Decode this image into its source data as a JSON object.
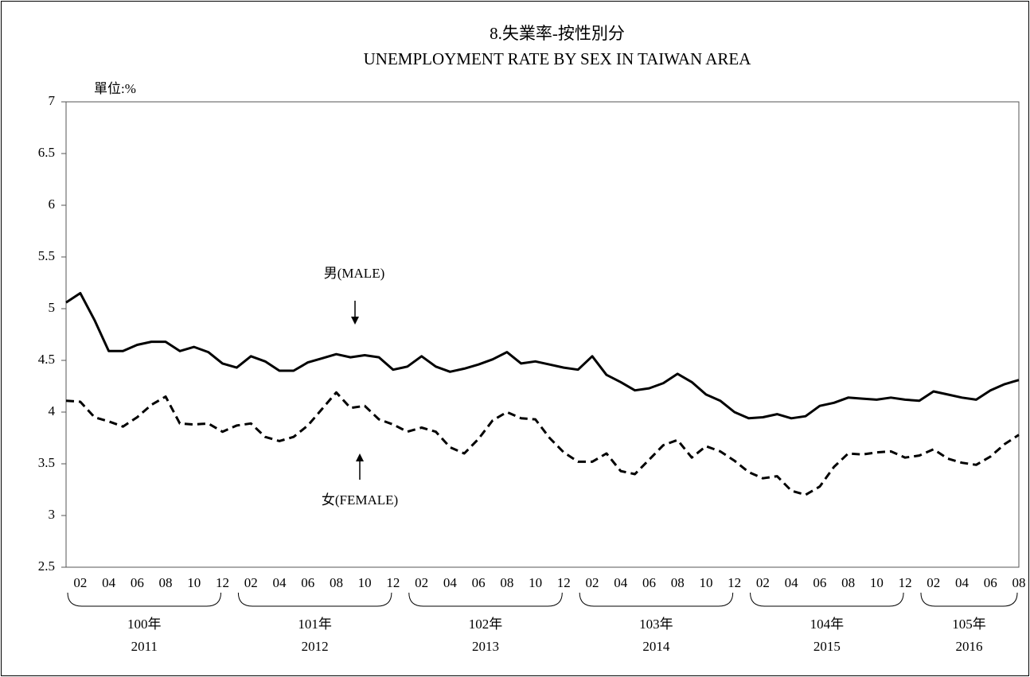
{
  "chart_data": {
    "type": "line",
    "title": "8.失業率-按性別分",
    "subtitle": "UNEMPLOYMENT RATE BY SEX IN TAIWAN AREA",
    "unit_label": "單位:%",
    "categories": [
      null,
      "02",
      null,
      "04",
      null,
      "06",
      null,
      "08",
      null,
      "10",
      null,
      "12",
      null,
      "02",
      null,
      "04",
      null,
      "06",
      null,
      "08",
      null,
      "10",
      null,
      "12",
      null,
      "02",
      null,
      "04",
      null,
      "06",
      null,
      "08",
      null,
      "10",
      null,
      "12",
      null,
      "02",
      null,
      "04",
      null,
      "06",
      null,
      "08",
      null,
      "10",
      null,
      "12",
      null,
      "02",
      null,
      "04",
      null,
      "06",
      null,
      "08",
      null,
      "10",
      null,
      "12",
      null,
      "02",
      null,
      "04",
      null,
      "06",
      null,
      "08"
    ],
    "year_groups": [
      {
        "roc": "100年",
        "year": "2011"
      },
      {
        "roc": "101年",
        "year": "2012"
      },
      {
        "roc": "102年",
        "year": "2013"
      },
      {
        "roc": "103年",
        "year": "2014"
      },
      {
        "roc": "104年",
        "year": "2015"
      },
      {
        "roc": "105年",
        "year": "2016"
      }
    ],
    "series": [
      {
        "name": "男(MALE)",
        "color": "#000000",
        "dash": false,
        "values": [
          5.06,
          5.15,
          4.89,
          4.59,
          4.59,
          4.65,
          4.68,
          4.68,
          4.59,
          4.63,
          4.58,
          4.47,
          4.43,
          4.54,
          4.49,
          4.4,
          4.4,
          4.48,
          4.52,
          4.56,
          4.53,
          4.55,
          4.53,
          4.41,
          4.44,
          4.54,
          4.44,
          4.39,
          4.42,
          4.46,
          4.51,
          4.58,
          4.47,
          4.49,
          4.46,
          4.43,
          4.41,
          4.54,
          4.36,
          4.29,
          4.21,
          4.23,
          4.28,
          4.37,
          4.29,
          4.17,
          4.11,
          4.0,
          3.94,
          3.95,
          3.98,
          3.94,
          3.96,
          4.06,
          4.09,
          4.14,
          4.13,
          4.12,
          4.14,
          4.12,
          4.11,
          4.2,
          4.17,
          4.14,
          4.12,
          4.21,
          4.27,
          4.31
        ]
      },
      {
        "name": "女(FEMALE)",
        "color": "#000000",
        "dash": true,
        "values": [
          4.11,
          4.1,
          3.95,
          3.91,
          3.86,
          3.95,
          4.07,
          4.15,
          3.89,
          3.88,
          3.89,
          3.81,
          3.87,
          3.89,
          3.76,
          3.72,
          3.76,
          3.87,
          4.03,
          4.19,
          4.04,
          4.06,
          3.93,
          3.88,
          3.81,
          3.85,
          3.81,
          3.66,
          3.6,
          3.74,
          3.92,
          4.0,
          3.94,
          3.93,
          3.75,
          3.61,
          3.52,
          3.52,
          3.6,
          3.43,
          3.4,
          3.54,
          3.68,
          3.73,
          3.56,
          3.67,
          3.62,
          3.53,
          3.42,
          3.36,
          3.38,
          3.24,
          3.2,
          3.28,
          3.47,
          3.6,
          3.59,
          3.61,
          3.62,
          3.56,
          3.58,
          3.64,
          3.55,
          3.51,
          3.49,
          3.57,
          3.69,
          3.78
        ]
      }
    ],
    "ylim": [
      2.5,
      7
    ],
    "yticks": [
      2.5,
      3,
      3.5,
      4,
      4.5,
      5,
      5.5,
      6,
      6.5,
      7
    ],
    "grid": false
  }
}
